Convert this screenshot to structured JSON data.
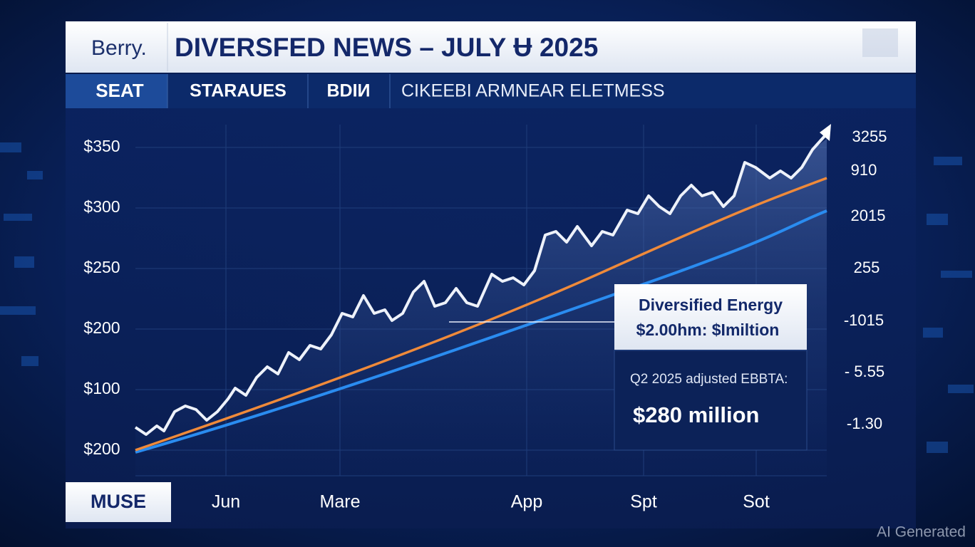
{
  "header": {
    "brand": "Berry.",
    "title": "DIVERSFED NEWS – JULY Ʉ 2025"
  },
  "tabs": [
    "SEAT",
    "STARAUES",
    "BDIИ",
    "CIKEEBI ARMNEAR ELETMESS"
  ],
  "left_labels": [
    "$350",
    "$300",
    "$250",
    "$200",
    "$100",
    "$200"
  ],
  "right_labels": [
    "3255",
    "910",
    "2015",
    "255",
    "-1015",
    "- 5.55",
    "-1.30"
  ],
  "bottom": {
    "button": "MUSE",
    "labels": [
      "Jun",
      "Mare",
      "App",
      "Spt",
      "Sot"
    ]
  },
  "callout": {
    "title": "Diversified Energy",
    "subtitle": "$2.00hm: $Imiltion",
    "caption": "Q2 2025 adjusted EBBTA:",
    "figure": "$280 million"
  },
  "watermark": "AI Generated"
}
